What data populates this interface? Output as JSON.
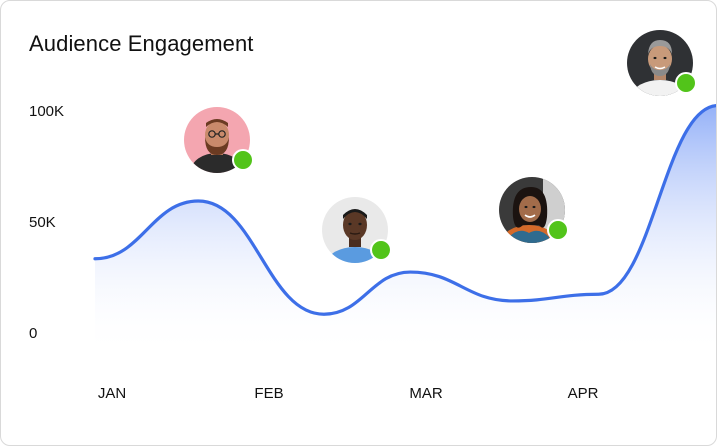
{
  "title": "Audience Engagement",
  "colors": {
    "line": "#3d6fe8",
    "area_top": "#8fadf7",
    "area_bottom": "#ffffff",
    "status": "#52c41a",
    "text": "#111111"
  },
  "chart_data": {
    "type": "area",
    "title": "Audience Engagement",
    "xlabel": "",
    "ylabel": "",
    "x_ticks": [
      "JAN",
      "FEB",
      "MAR",
      "APR"
    ],
    "y_ticks": [
      "100K",
      "50K",
      "0"
    ],
    "y_tick_values": [
      100000,
      50000,
      0
    ],
    "ylim": [
      0,
      100000
    ],
    "grid": false,
    "series": [
      {
        "x": [
          -0.1,
          0.55,
          1.35,
          1.9,
          2.55,
          3.1,
          3.95
        ],
        "values": [
          33000,
          59000,
          8000,
          27000,
          14000,
          17000,
          102000
        ]
      }
    ]
  },
  "avatars": [
    {
      "name": "user-avatar-1",
      "skin": "#c98a6b",
      "bg": "#f4a6b0",
      "shirt": "#2b2b2b",
      "hair": "#6b3b22",
      "online": true
    },
    {
      "name": "user-avatar-2",
      "skin": "#5a3826",
      "bg": "#e9e9e9",
      "shirt": "#5a9be0",
      "hair": "#1a1a1a",
      "online": true
    },
    {
      "name": "user-avatar-3",
      "skin": "#a26c4a",
      "bg": "#3a3a3a",
      "shirt": "#d46a2a",
      "hair": "#1b1310",
      "online": true
    },
    {
      "name": "user-avatar-4",
      "skin": "#c89a7a",
      "bg": "#2f3134",
      "shirt": "#f2f2f2",
      "hair": "#9a9a9a",
      "online": true
    }
  ]
}
